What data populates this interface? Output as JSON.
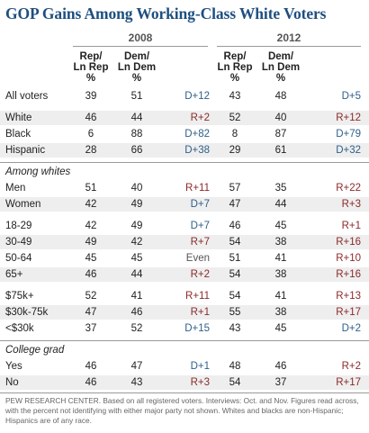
{
  "chart_data": {
    "type": "table",
    "title": "GOP Gains Among Working-Class White Voters",
    "years": [
      "2008",
      "2012"
    ],
    "columns": {
      "rep": [
        "Rep/",
        "Ln Rep"
      ],
      "dem": [
        "Dem/",
        "Ln Dem"
      ],
      "pct": "%"
    },
    "groups": [
      {
        "rows": [
          {
            "label": "All voters",
            "v2008": [
              39,
              51
            ],
            "gap2008": "D+12",
            "v2012": [
              43,
              48
            ],
            "gap2012": "D+5"
          }
        ]
      },
      {
        "rows": [
          {
            "label": "White",
            "v2008": [
              46,
              44
            ],
            "gap2008": "R+2",
            "v2012": [
              52,
              40
            ],
            "gap2012": "R+12"
          },
          {
            "label": "Black",
            "v2008": [
              6,
              88
            ],
            "gap2008": "D+82",
            "v2012": [
              8,
              87
            ],
            "gap2012": "D+79"
          },
          {
            "label": "Hispanic",
            "v2008": [
              28,
              66
            ],
            "gap2008": "D+38",
            "v2012": [
              29,
              61
            ],
            "gap2012": "D+32"
          }
        ]
      },
      {
        "section": "Among whites",
        "rows": [
          {
            "label": "Men",
            "v2008": [
              51,
              40
            ],
            "gap2008": "R+11",
            "v2012": [
              57,
              35
            ],
            "gap2012": "R+22"
          },
          {
            "label": "Women",
            "v2008": [
              42,
              49
            ],
            "gap2008": "D+7",
            "v2012": [
              47,
              44
            ],
            "gap2012": "R+3"
          }
        ]
      },
      {
        "rows": [
          {
            "label": "18-29",
            "v2008": [
              42,
              49
            ],
            "gap2008": "D+7",
            "v2012": [
              46,
              45
            ],
            "gap2012": "R+1"
          },
          {
            "label": "30-49",
            "v2008": [
              49,
              42
            ],
            "gap2008": "R+7",
            "v2012": [
              54,
              38
            ],
            "gap2012": "R+16"
          },
          {
            "label": "50-64",
            "v2008": [
              45,
              45
            ],
            "gap2008": "Even",
            "v2012": [
              51,
              41
            ],
            "gap2012": "R+10"
          },
          {
            "label": "65+",
            "v2008": [
              46,
              44
            ],
            "gap2008": "R+2",
            "v2012": [
              54,
              38
            ],
            "gap2012": "R+16"
          }
        ]
      },
      {
        "rows": [
          {
            "label": "$75k+",
            "v2008": [
              52,
              41
            ],
            "gap2008": "R+11",
            "v2012": [
              54,
              41
            ],
            "gap2012": "R+13"
          },
          {
            "label": "$30k-75k",
            "v2008": [
              47,
              46
            ],
            "gap2008": "R+1",
            "v2012": [
              55,
              38
            ],
            "gap2012": "R+17"
          },
          {
            "label": "<$30k",
            "v2008": [
              37,
              52
            ],
            "gap2008": "D+15",
            "v2012": [
              43,
              45
            ],
            "gap2012": "D+2"
          }
        ]
      },
      {
        "section": "College grad",
        "rows": [
          {
            "label": "Yes",
            "v2008": [
              46,
              47
            ],
            "gap2008": "D+1",
            "v2012": [
              48,
              46
            ],
            "gap2012": "R+2"
          },
          {
            "label": "No",
            "v2008": [
              46,
              43
            ],
            "gap2008": "R+3",
            "v2012": [
              54,
              37
            ],
            "gap2012": "R+17"
          }
        ]
      }
    ],
    "footnote": "PEW RESEARCH CENTER. Based on all registered voters. Interviews: Oct. and Nov. Figures read across, with the percent not identifying with either major party not shown. Whites and blacks are non-Hispanic; Hispanics are of any race."
  },
  "colors": {
    "title": "#1e4f80",
    "rep_gap": "#8b2a2a",
    "dem_gap": "#2e5f8a",
    "shade": "#eeeeee"
  }
}
